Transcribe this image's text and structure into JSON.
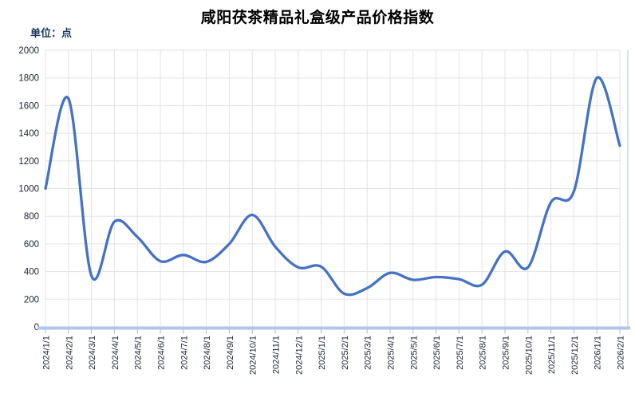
{
  "page": {
    "background": "#ffffff"
  },
  "chart_data": {
    "type": "line",
    "title": "咸阳茯茶精品礼盒级产品价格指数",
    "unit_label": "单位：点",
    "x": [
      "2024/1/1",
      "2024/2/1",
      "2024/3/1",
      "2024/4/1",
      "2024/5/1",
      "2024/6/1",
      "2024/7/1",
      "2024/8/1",
      "2024/9/1",
      "2024/10/1",
      "2024/11/1",
      "2024/12/1",
      "2025/1/1",
      "2025/2/1",
      "2025/3/1",
      "2025/4/1",
      "2025/5/1",
      "2025/6/1",
      "2025/7/1",
      "2025/8/1",
      "2025/9/1",
      "2025/10/1",
      "2025/11/1",
      "2025/12/1",
      "2026/1/1",
      "2026/2/1"
    ],
    "series": [
      {
        "name": "咸阳茯茶精品礼盒级产品价格指数",
        "values": [
          1000,
          1650,
          370,
          760,
          650,
          475,
          520,
          470,
          600,
          810,
          580,
          430,
          435,
          240,
          280,
          390,
          340,
          360,
          345,
          305,
          545,
          430,
          900,
          980,
          1800,
          1310
        ]
      }
    ],
    "ylim": [
      0,
      2000
    ],
    "y_ticks": [
      0,
      200,
      400,
      600,
      800,
      1000,
      1200,
      1400,
      1600,
      1800,
      2000
    ],
    "xlabel": "",
    "ylabel": "",
    "legend": "none",
    "grid": true,
    "smooth": true,
    "x_label_rotation_deg": 90,
    "colors": {
      "line": "#4472C4",
      "grid": "#e3e3e3",
      "axis_band": "#aec6e8",
      "axis_tick": "#9db8e0",
      "plot_border_right": "#c9d7ee",
      "tick_text": "#1c2430",
      "title_text": "#000000",
      "unit_text": "#17375e"
    }
  }
}
